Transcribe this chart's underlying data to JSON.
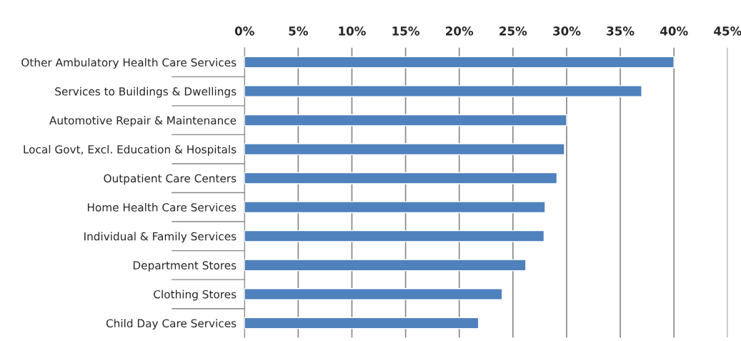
{
  "chart_data": {
    "type": "bar",
    "orientation": "horizontal",
    "categories": [
      "Other Ambulatory Health Care Services",
      "Services to Buildings & Dwellings",
      "Automotive Repair & Maintenance",
      "Local Govt, Excl. Education & Hospitals",
      "Outpatient Care Centers",
      "Home Health Care Services",
      "Individual & Family Services",
      "Department Stores",
      "Clothing Stores",
      "Child Day Care Services"
    ],
    "values": [
      40.0,
      37.0,
      30.0,
      29.8,
      29.1,
      28.0,
      27.9,
      26.2,
      24.0,
      21.8
    ],
    "color": "#4f81bd",
    "xlim": [
      0,
      45
    ],
    "xticks": [
      {
        "value": 0,
        "label": "0%"
      },
      {
        "value": 5,
        "label": "5%"
      },
      {
        "value": 10,
        "label": "10%"
      },
      {
        "value": 15,
        "label": "15%"
      },
      {
        "value": 20,
        "label": "20%"
      },
      {
        "value": 25,
        "label": "25%"
      },
      {
        "value": 30,
        "label": "30%"
      },
      {
        "value": 35,
        "label": "35%"
      },
      {
        "value": 40,
        "label": "40%"
      },
      {
        "value": 45,
        "label": "45%"
      }
    ],
    "grid": "x"
  }
}
